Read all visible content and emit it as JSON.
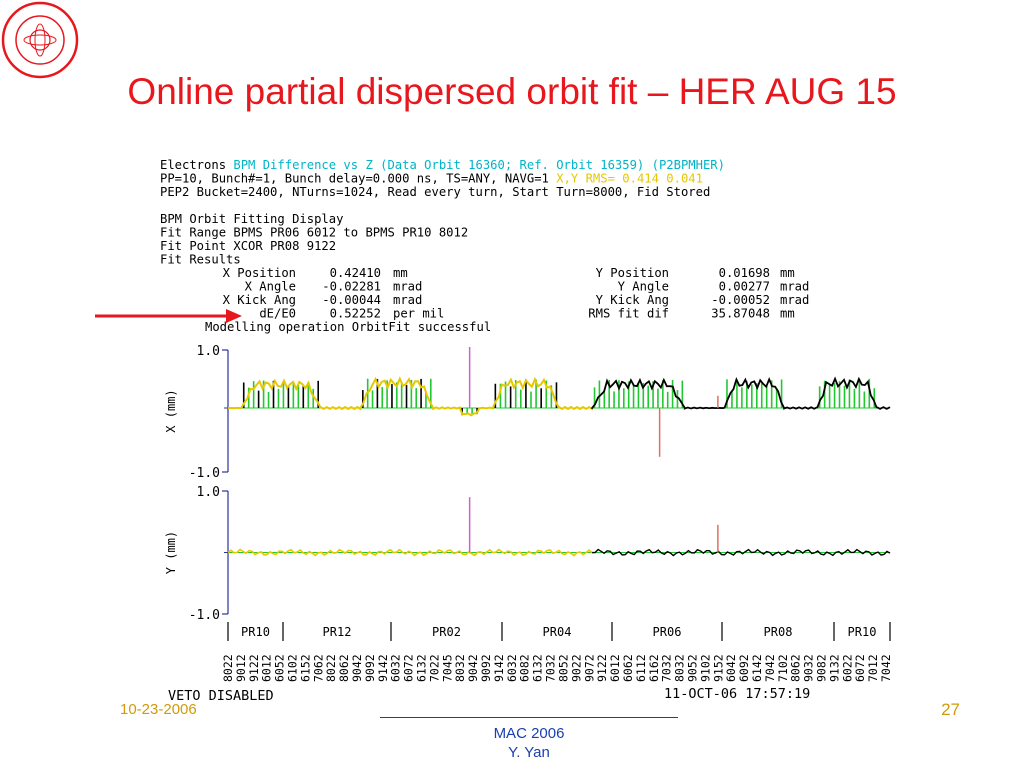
{
  "slide": {
    "title": "Online partial dispersed orbit fit – HER AUG 15",
    "footer_date": "10-23-2006",
    "footer_conference": "MAC 2006",
    "footer_author": "Y. Yan",
    "page_number": "27",
    "title_color": "#e8161d",
    "footer_color": "#1a3fb0",
    "date_color": "#d09a0a",
    "logo": "slac-seal-logo"
  },
  "display": {
    "header": [
      [
        {
          "t": "Electrons ",
          "c": "#000000"
        },
        {
          "t": "BPM Difference vs Z (Data Orbit 16360; Ref. Orbit 16359) (P2BPMHER)",
          "c": "#00b4c8"
        }
      ],
      [
        {
          "t": "PP=10, Bunch#=1, Bunch delay=0.000 ns, TS=ANY, NAVG=1  ",
          "c": "#000000"
        },
        {
          "t": "X,Y RMS= 0.414 0.041",
          "c": "#e6c800"
        }
      ],
      [
        {
          "t": "PEP2 Bucket=2400, NTurns=1024, Read every turn, Start Turn=8000, Fid Stored",
          "c": "#000000"
        }
      ]
    ],
    "fit_lines": [
      "BPM Orbit Fitting Display",
      "Fit Range BPMS PR06 6012 to BPMS PR10 8012",
      "Fit Point XCOR PR08 9122",
      "Fit Results"
    ],
    "fit_results": [
      {
        "label": "X Position",
        "value": "0.42410",
        "unit": "mm",
        "label2": "Y Position",
        "value2": "0.01698",
        "unit2": "mm"
      },
      {
        "label": "X Angle",
        "value": "-0.02281",
        "unit": "mrad",
        "label2": "Y Angle",
        "value2": "0.00277",
        "unit2": "mrad"
      },
      {
        "label": "X Kick Ang",
        "value": "-0.00044",
        "unit": "mrad",
        "label2": "Y Kick Ang",
        "value2": "-0.00052",
        "unit2": "mrad"
      },
      {
        "label": "dE/E0",
        "value": "0.52252",
        "unit": "per mil",
        "label2": "RMS fit dif",
        "value2": "35.87048",
        "unit2": "mm"
      }
    ],
    "fit_status": "Modelling operation OrbitFit successful",
    "veto_status": "VETO DISABLED",
    "timestamp": "11-OCT-06 17:57:19",
    "x_panel": {
      "ylabel": "X (mm)",
      "ytop": "1.0",
      "ybot": "-1.0"
    },
    "y_panel": {
      "ylabel": "Y (mm)",
      "ytop": "1.0",
      "ybot": "-1.0"
    },
    "regions": [
      "PR10",
      "PR12",
      "PR02",
      "PR04",
      "PR06",
      "PR08",
      "PR10"
    ],
    "bpm_labels": [
      "8022",
      "9012",
      "9122",
      "6012",
      "6052",
      "6102",
      "6152",
      "7062",
      "8022",
      "8062",
      "9042",
      "9092",
      "9142",
      "6032",
      "6072",
      "6132",
      "7022",
      "7045",
      "8032",
      "9042",
      "9092",
      "9142",
      "6032",
      "6082",
      "6132",
      "7032",
      "8052",
      "9022",
      "9072",
      "9122",
      "6012",
      "6062",
      "6112",
      "6162",
      "7032",
      "8032",
      "9052",
      "9102",
      "9152",
      "6042",
      "6092",
      "6142",
      "7042",
      "7102",
      "8062",
      "9032",
      "9082",
      "9132",
      "6022",
      "6072",
      "7012",
      "7042"
    ],
    "colors": {
      "arrow": "#e8161d",
      "green": "#22c832",
      "yellow": "#e6c800",
      "black": "#000000",
      "axis": "#3030a0",
      "cyan": "#00b4c8"
    }
  },
  "chart_data": [
    {
      "type": "bar",
      "title": "",
      "ylabel": "X (mm)",
      "ylim": [
        -1.0,
        1.0
      ],
      "grid": false,
      "series": [
        {
          "name": "data",
          "segments": [
            {
              "x0": 0.0,
              "x1": 0.02,
              "y": 0.0
            },
            {
              "x0": 0.02,
              "x1": 0.14,
              "y": 0.45
            },
            {
              "x0": 0.14,
              "x1": 0.2,
              "y": 0.0
            },
            {
              "x0": 0.2,
              "x1": 0.31,
              "y": 0.48
            },
            {
              "x0": 0.31,
              "x1": 0.35,
              "y": 0.0
            },
            {
              "x0": 0.35,
              "x1": 0.38,
              "y": -0.12
            },
            {
              "x0": 0.38,
              "x1": 0.4,
              "y": 0.0
            },
            {
              "x0": 0.4,
              "x1": 0.5,
              "y": 0.47
            },
            {
              "x0": 0.5,
              "x1": 0.55,
              "y": 0.0
            },
            {
              "x0": 0.55,
              "x1": 0.69,
              "y": 0.46
            },
            {
              "x0": 0.69,
              "x1": 0.75,
              "y": 0.0
            },
            {
              "x0": 0.75,
              "x1": 0.84,
              "y": 0.47
            },
            {
              "x0": 0.84,
              "x1": 0.89,
              "y": 0.0
            },
            {
              "x0": 0.89,
              "x1": 0.98,
              "y": 0.48
            },
            {
              "x0": 0.98,
              "x1": 1.0,
              "y": 0.0
            }
          ]
        },
        {
          "name": "spikes",
          "points": [
            {
              "x": 0.365,
              "y": 1.0,
              "color": "#d060d0"
            },
            {
              "x": 0.652,
              "y": -0.8,
              "color": "#e07060"
            },
            {
              "x": 0.74,
              "y": 0.2,
              "color": "#e07060"
            }
          ]
        }
      ]
    },
    {
      "type": "line",
      "title": "",
      "ylabel": "Y (mm)",
      "ylim": [
        -1.0,
        1.0
      ],
      "grid": false,
      "series": [
        {
          "name": "data",
          "baseline": 0.0,
          "noise": 0.03
        },
        {
          "name": "spikes",
          "points": [
            {
              "x": 0.365,
              "y": 0.9,
              "color": "#d060d0"
            },
            {
              "x": 0.74,
              "y": 0.45,
              "color": "#e07060"
            }
          ]
        }
      ]
    }
  ]
}
